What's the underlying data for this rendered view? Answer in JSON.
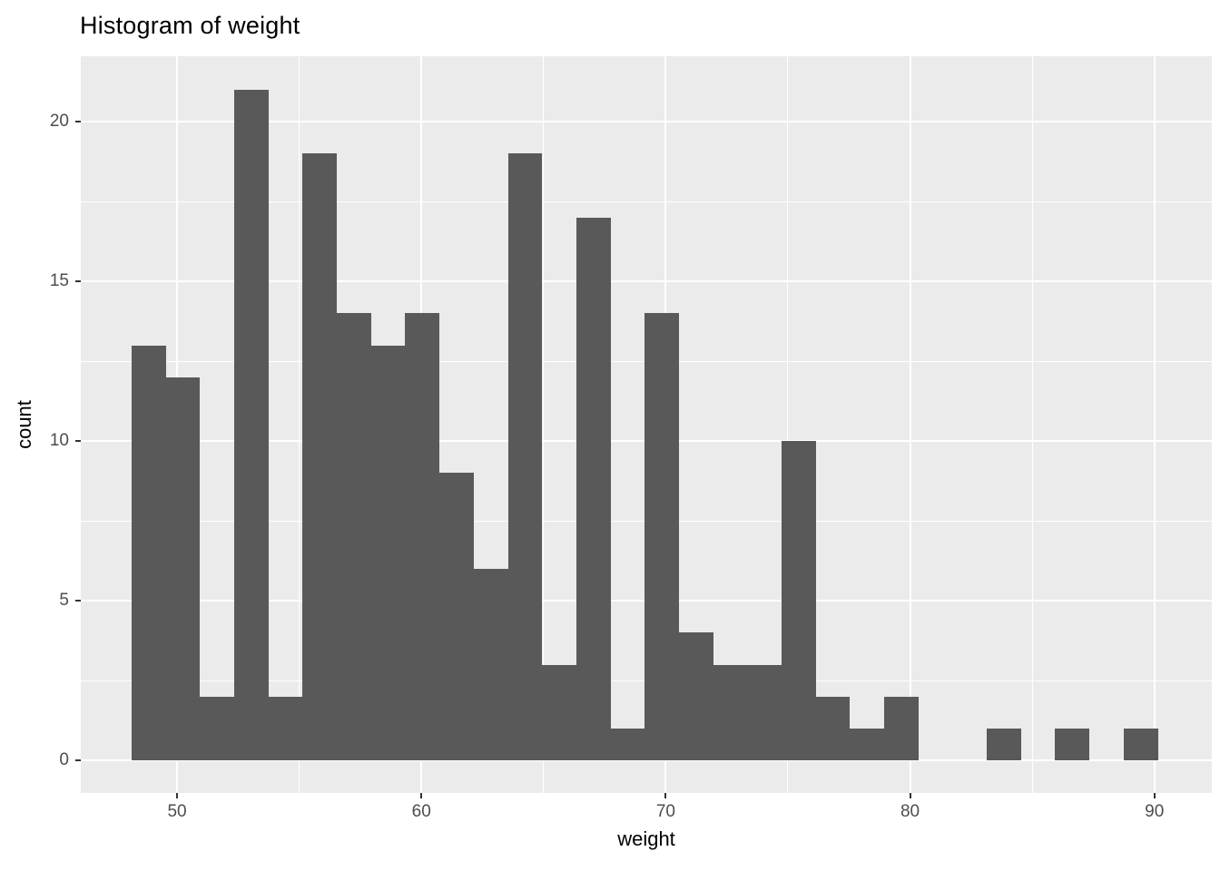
{
  "title": "Histogram of weight",
  "colors": {
    "background": "#FFFFFF",
    "panel_background": "#EBEBEB",
    "bar_fill": "#595959",
    "gridline": "#FFFFFF",
    "tick_mark": "#333333",
    "tick_label": "#4D4D4D",
    "title_text": "#000000",
    "axis_title_text": "#000000"
  },
  "chart_data": {
    "type": "histogram",
    "title": "Histogram of weight",
    "xlabel": "weight",
    "ylabel": "count",
    "bin_start": 48.14,
    "binwidth": 1.4,
    "counts": [
      13,
      12,
      2,
      21,
      2,
      19,
      14,
      13,
      14,
      9,
      6,
      19,
      3,
      17,
      1,
      14,
      4,
      3,
      3,
      10,
      2,
      1,
      2,
      0,
      0,
      1,
      0,
      1,
      0,
      1
    ],
    "x_ticks": [
      50,
      60,
      70,
      80,
      90
    ],
    "y_ticks": [
      0,
      5,
      10,
      15,
      20
    ],
    "x_minor_breaks": [
      55,
      65,
      75,
      85
    ],
    "y_minor_breaks": [
      2.5,
      7.5,
      12.5,
      17.5
    ],
    "x_domain": [
      46.06,
      92.35
    ],
    "y_domain": [
      -1.02,
      22.05
    ],
    "grid": "on",
    "legend": "none"
  }
}
